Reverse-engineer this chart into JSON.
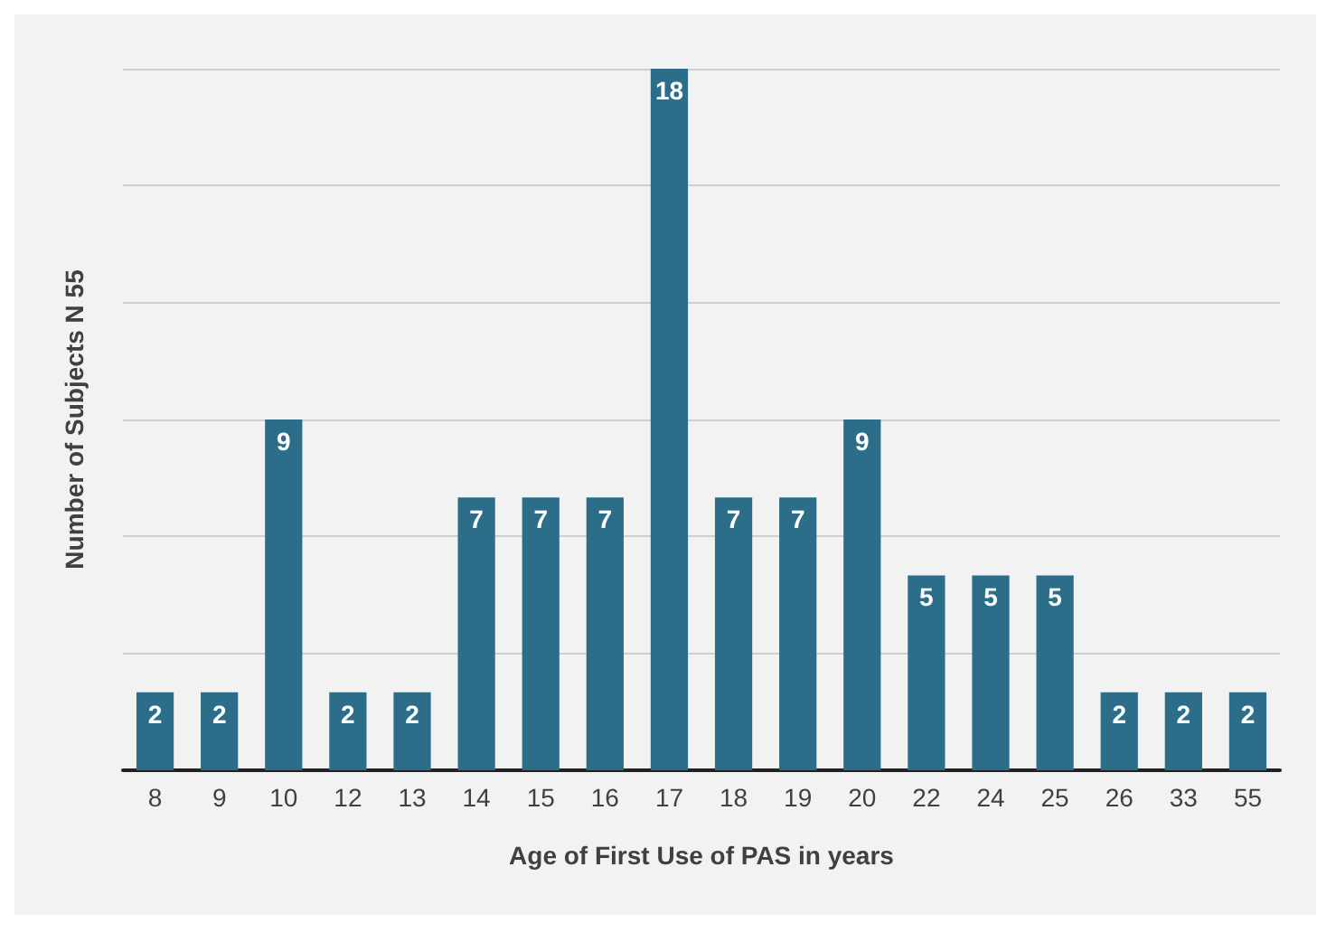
{
  "chart_data": {
    "type": "bar",
    "xlabel": "Age of First Use of PAS in years",
    "ylabel": "Number of Subjects N 55",
    "categories": [
      "8",
      "9",
      "10",
      "12",
      "13",
      "14",
      "15",
      "16",
      "17",
      "18",
      "19",
      "20",
      "22",
      "24",
      "25",
      "26",
      "33",
      "55"
    ],
    "values": [
      2,
      2,
      9,
      2,
      2,
      7,
      7,
      7,
      18,
      7,
      7,
      9,
      5,
      5,
      5,
      2,
      2,
      2
    ],
    "color": "#2c6e8a",
    "data_labels": true,
    "grid": "y",
    "tick_labels": "x"
  }
}
